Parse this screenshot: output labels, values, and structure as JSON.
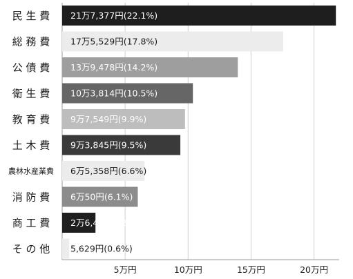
{
  "chart_data": {
    "type": "bar",
    "orientation": "horizontal",
    "title": "",
    "xlabel": "",
    "ylabel": "",
    "xlim": [
      0,
      220000
    ],
    "grid": true,
    "categories": [
      "民 生 費",
      "総 務 費",
      "公 債 費",
      "衛 生 費",
      "教 育 費",
      "土 木 費",
      "農林水産業費",
      "消 防 費",
      "商 工 費",
      "そ の 他"
    ],
    "values": [
      217377,
      175529,
      139478,
      103814,
      97549,
      93845,
      65358,
      60050,
      26453,
      5629
    ],
    "value_labels": [
      "21万7,377円(22.1%)",
      "17万5,529円(17.8%)",
      "13万9,478円(14.2%)",
      "10万3,814円(10.5%)",
      "9万7,549円(9.9%)",
      "9万3,845円(9.5%)",
      "6万5,358円(6.6%)",
      "6万50円(6.1%)",
      "2万6,453円(2.7%)",
      "5,629円(0.6%)"
    ],
    "bar_colors": [
      "#1e1e1e",
      "#ececec",
      "#9e9e9e",
      "#666666",
      "#bdbdbd",
      "#3a3a3a",
      "#ececec",
      "#8c8c8c",
      "#1e1e1e",
      "#ececec"
    ],
    "label_colors": [
      "#ffffff",
      "#1a1a1a",
      "#ffffff",
      "#ffffff",
      "#ffffff",
      "#ffffff",
      "#1a1a1a",
      "#ffffff",
      "#ffffff",
      "#1a1a1a"
    ],
    "x_ticks": [
      50000,
      100000,
      150000,
      200000
    ],
    "x_tick_labels": [
      "5万円",
      "10万円",
      "15万円",
      "20万円"
    ]
  }
}
